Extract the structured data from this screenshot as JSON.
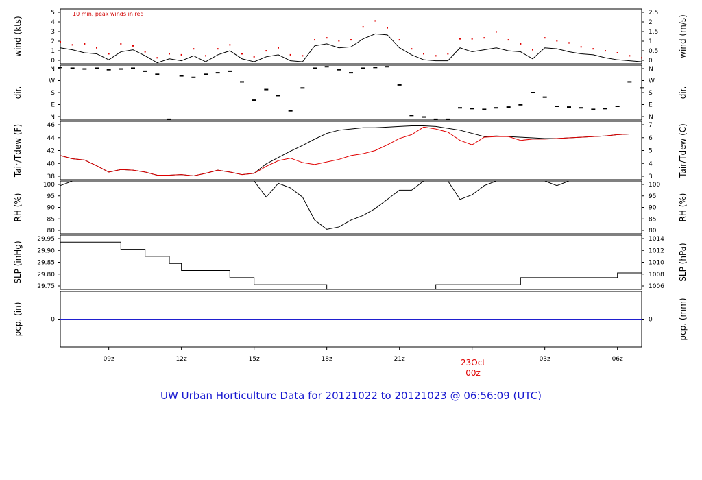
{
  "title": "UW Urban Horticulture Data for 20121022  to  20121023 @ 06:56:09  (UTC)",
  "date_marker": {
    "day": "23Oct",
    "hour": "00z"
  },
  "x_ticks": [
    "09z",
    "12z",
    "15z",
    "18z",
    "21z",
    "03z",
    "06z"
  ],
  "chart_data": [
    {
      "type": "line",
      "panel": "wind",
      "left_label": "wind (kts)",
      "right_label": "wind (m/s)",
      "annotation": "10 min. peak winds in red",
      "left_ticks": [
        "0",
        "1",
        "2",
        "3",
        "4",
        "5"
      ],
      "right_ticks": [
        "0",
        "0.5",
        "1",
        "1.5",
        "2",
        "2.5"
      ],
      "ylim": [
        0,
        5.5
      ],
      "x_hours": [
        7,
        7.5,
        8,
        8.5,
        9,
        9.5,
        10,
        10.5,
        11,
        11.5,
        12,
        12.5,
        13,
        13.5,
        14,
        14.5,
        15,
        15.5,
        16,
        16.5,
        17,
        17.5,
        18,
        18.5,
        19,
        19.5,
        20,
        20.5,
        21,
        21.5,
        22,
        22.5,
        23,
        23.5,
        24,
        24.5,
        25,
        25.5,
        26,
        26.5,
        27,
        27.5,
        28,
        28.5,
        29,
        29.5,
        30,
        30.5,
        31
      ],
      "series": [
        {
          "values": [
            1.6,
            1.4,
            1.1,
            1.0,
            0.4,
            1.2,
            1.4,
            0.8,
            0.1,
            0.5,
            0.3,
            0.8,
            0.2,
            0.9,
            1.3,
            0.5,
            0.2,
            0.7,
            0.9,
            0.3,
            0.2,
            1.8,
            2.0,
            1.6,
            1.7,
            2.5,
            3.0,
            2.9,
            1.6,
            0.9,
            0.4,
            0.3,
            0.3,
            1.6,
            1.2,
            1.4,
            1.6,
            1.3,
            1.2,
            0.5,
            1.6,
            1.5,
            1.2,
            1.0,
            0.9,
            0.6,
            0.4,
            0.3,
            0.2
          ]
        },
        {
          "color": "#e00000",
          "values": [
            2.2,
            1.9,
            2.0,
            1.6,
            1.0,
            2.0,
            1.8,
            1.2,
            0.6,
            1.0,
            0.9,
            1.5,
            0.8,
            1.5,
            1.9,
            1.0,
            0.7,
            1.3,
            1.6,
            0.9,
            0.8,
            2.4,
            2.6,
            2.3,
            2.4,
            3.7,
            4.3,
            3.6,
            2.4,
            1.5,
            1.0,
            0.8,
            1.0,
            2.5,
            2.5,
            2.6,
            3.2,
            2.4,
            2.0,
            1.4,
            2.6,
            2.3,
            2.1,
            1.7,
            1.5,
            1.3,
            1.1,
            0.8,
            0.6
          ]
        }
      ]
    },
    {
      "type": "scatter",
      "panel": "direction",
      "left_label": "dir.",
      "right_label": "dir.",
      "left_ticks": [
        "N",
        "E",
        "S",
        "W",
        "N"
      ],
      "right_ticks": [
        "N",
        "E",
        "S",
        "W",
        "N"
      ],
      "ylim": [
        0,
        360
      ],
      "x_hours": [
        7,
        7.5,
        8,
        8.5,
        9,
        9.5,
        10,
        10.5,
        11,
        11.5,
        12,
        12.5,
        13,
        13.5,
        14,
        14.5,
        15,
        15.5,
        16,
        16.5,
        17,
        17.5,
        18,
        18.5,
        19,
        19.5,
        20,
        20.5,
        21,
        21.5,
        22,
        22.5,
        23,
        23.5,
        24,
        24.5,
        25,
        25.5,
        26,
        26.5,
        27,
        27.5,
        28,
        28.5,
        29,
        29.5,
        30,
        30.5,
        31
      ],
      "series": [
        {
          "values": [
            345,
            340,
            335,
            340,
            330,
            335,
            340,
            320,
            300,
            5,
            290,
            280,
            300,
            310,
            320,
            250,
            130,
            200,
            160,
            60,
            210,
            340,
            350,
            330,
            310,
            340,
            345,
            350,
            230,
            30,
            20,
            5,
            5,
            80,
            75,
            70,
            80,
            85,
            100,
            180,
            150,
            90,
            85,
            80,
            70,
            75,
            90,
            250,
            210
          ]
        }
      ]
    },
    {
      "type": "line",
      "panel": "temperature",
      "left_label": "Tair/Tdew (F)",
      "right_label": "Tair/Tdew (C)",
      "left_ticks": [
        "38",
        "40",
        "42",
        "44",
        "46"
      ],
      "right_ticks": [
        "3",
        "4",
        "5",
        "6",
        "7"
      ],
      "ylim": [
        36.8,
        46
      ],
      "x_hours": [
        7,
        7.5,
        8,
        8.5,
        9,
        9.5,
        10,
        10.5,
        11,
        11.5,
        12,
        12.5,
        13,
        13.5,
        14,
        14.5,
        15,
        15.5,
        16,
        16.5,
        17,
        17.5,
        18,
        18.5,
        19,
        19.5,
        20,
        20.5,
        21,
        21.5,
        22,
        22.5,
        23,
        23.5,
        24,
        24.5,
        25,
        25.5,
        26,
        26.5,
        27,
        27.5,
        28,
        28.5,
        29,
        29.5,
        30,
        30.5,
        31
      ],
      "series": [
        {
          "values": [
            40.6,
            40.1,
            39.9,
            39.0,
            38.0,
            38.4,
            38.3,
            38.0,
            37.5,
            37.5,
            37.6,
            37.4,
            37.8,
            38.3,
            38.0,
            37.6,
            37.8,
            39.3,
            40.3,
            41.3,
            42.2,
            43.2,
            44.1,
            44.6,
            44.8,
            45.0,
            45.0,
            45.1,
            45.2,
            45.3,
            45.3,
            45.2,
            44.9,
            44.6,
            44.1,
            43.6,
            43.7,
            43.6,
            43.5,
            43.4,
            43.3,
            43.3,
            43.4,
            43.5,
            43.6,
            43.7,
            43.9,
            44.0,
            44.0
          ]
        },
        {
          "color": "#e00000",
          "values": [
            40.6,
            40.1,
            39.9,
            39.0,
            38.0,
            38.4,
            38.3,
            38.0,
            37.5,
            37.5,
            37.6,
            37.4,
            37.8,
            38.3,
            38.0,
            37.6,
            37.8,
            38.9,
            39.8,
            40.2,
            39.5,
            39.2,
            39.6,
            40.0,
            40.6,
            40.9,
            41.4,
            42.3,
            43.3,
            43.9,
            45.1,
            44.8,
            44.3,
            43.0,
            42.3,
            43.5,
            43.6,
            43.6,
            43.0,
            43.2,
            43.2,
            43.3,
            43.4,
            43.5,
            43.6,
            43.7,
            43.9,
            44.0,
            44.0
          ]
        }
      ]
    },
    {
      "type": "line",
      "panel": "humidity",
      "left_label": "RH (%)",
      "right_label": "RH (%)",
      "left_ticks": [
        "80",
        "85",
        "90",
        "95",
        "100"
      ],
      "right_ticks": [
        "80",
        "85",
        "90",
        "95",
        "100"
      ],
      "ylim": [
        77,
        100
      ],
      "x_hours": [
        7,
        7.5,
        8,
        8.5,
        9,
        9.5,
        10,
        10.5,
        11,
        11.5,
        12,
        12.5,
        13,
        13.5,
        14,
        14.5,
        15,
        15.5,
        16,
        16.5,
        17,
        17.5,
        18,
        18.5,
        19,
        19.5,
        20,
        20.5,
        21,
        21.5,
        22,
        22.5,
        23,
        23.5,
        24,
        24.5,
        25,
        25.5,
        26,
        26.5,
        27,
        27.5,
        28,
        28.5,
        29,
        29.5,
        30,
        30.5,
        31
      ],
      "series": [
        {
          "values": [
            98,
            100,
            100,
            100,
            100,
            100,
            100,
            100,
            100,
            100,
            100,
            100,
            100,
            100,
            100,
            100,
            100,
            93,
            99,
            97,
            93,
            83,
            79,
            80,
            83,
            85,
            88,
            92,
            96,
            96,
            100,
            100,
            100,
            92,
            94,
            98,
            100,
            100,
            100,
            100,
            100,
            98,
            100,
            100,
            100,
            100,
            100,
            100,
            100
          ]
        }
      ]
    },
    {
      "type": "line",
      "panel": "pressure",
      "left_label": "SLP (inHg)",
      "right_label": "SLP (hPa)",
      "left_ticks": [
        "29.75",
        "29.80",
        "29.85",
        "29.90",
        "29.95"
      ],
      "right_ticks": [
        "1006",
        "1008",
        "1010",
        "1012",
        "1014"
      ],
      "ylim": [
        29.72,
        29.95
      ],
      "x_hours": [
        7,
        7.5,
        8,
        8.5,
        9,
        9.5,
        10,
        10.5,
        11,
        11.5,
        12,
        12.5,
        13,
        13.5,
        14,
        14.5,
        15,
        15.5,
        16,
        16.5,
        17,
        17.5,
        18,
        18.5,
        19,
        19.5,
        20,
        20.5,
        21,
        21.5,
        22,
        22.5,
        23,
        23.5,
        24,
        24.5,
        25,
        25.5,
        26,
        26.5,
        27,
        27.5,
        28,
        28.5,
        29,
        29.5,
        30,
        30.5,
        31
      ],
      "series": [
        {
          "values": [
            29.92,
            29.92,
            29.92,
            29.92,
            29.92,
            29.89,
            29.89,
            29.86,
            29.86,
            29.83,
            29.8,
            29.8,
            29.8,
            29.8,
            29.77,
            29.77,
            29.74,
            29.74,
            29.74,
            29.74,
            29.74,
            29.74,
            29.72,
            29.72,
            29.72,
            29.72,
            29.72,
            29.72,
            29.72,
            29.72,
            29.72,
            29.74,
            29.74,
            29.74,
            29.74,
            29.74,
            29.74,
            29.74,
            29.77,
            29.77,
            29.77,
            29.77,
            29.77,
            29.77,
            29.77,
            29.77,
            29.79,
            29.79,
            29.79
          ]
        }
      ]
    },
    {
      "type": "line",
      "panel": "precipitation",
      "left_label": "pcp. (in)",
      "right_label": "pcp. (mm)",
      "left_ticks": [
        "0"
      ],
      "right_ticks": [
        "0"
      ],
      "ylim": [
        -1,
        1
      ],
      "x_hours": [
        7,
        31
      ],
      "series": [
        {
          "color": "#2020d0",
          "values": [
            0,
            0
          ]
        }
      ]
    }
  ]
}
